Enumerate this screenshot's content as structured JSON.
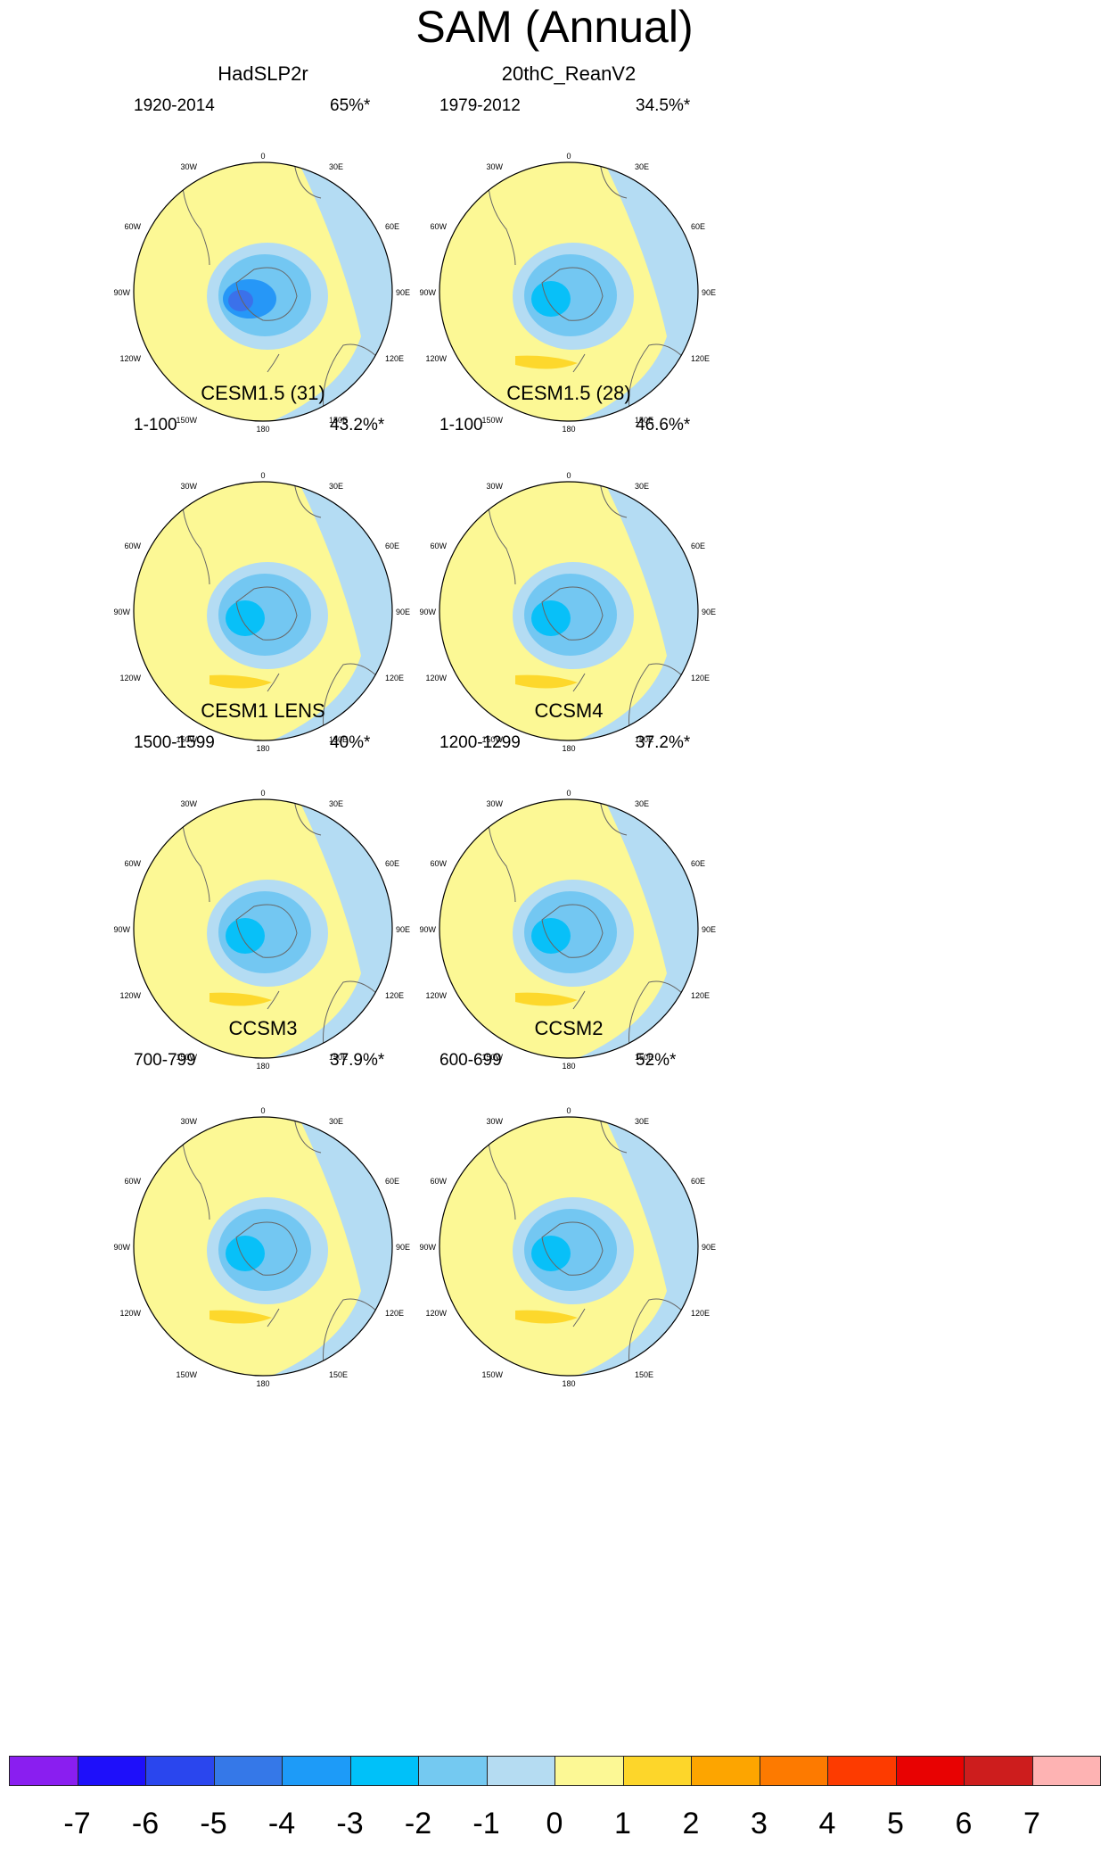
{
  "title": "SAM (Annual)",
  "colors": {
    "ocean_bg": "#fcf895",
    "neg1": "#b4dcf3",
    "neg2": "#73c7f2",
    "neg3": "#08c0f8",
    "neg4": "#2697f7",
    "neg5": "#3b71ea",
    "pos1": "#fdd82c",
    "coast": "#666666"
  },
  "map_labels": {
    "top": "0",
    "bottom": "180",
    "left": "90W",
    "right": "90E",
    "w30": "30W",
    "e30": "30E",
    "w60": "60W",
    "e60": "60E",
    "w120": "120W",
    "e120": "120E",
    "w150": "150W",
    "e150": "150E"
  },
  "panels": [
    {
      "name": "HadSLP2r",
      "period": "1920-2014",
      "variance": "65%*",
      "min_level": -5,
      "pos_blob": false
    },
    {
      "name": "20thC_ReanV2",
      "period": "1979-2012",
      "variance": "34.5%*",
      "min_level": -3,
      "pos_blob": true
    },
    {
      "name": "CESM1.5 (31)",
      "period": "1-100",
      "variance": "43.2%*",
      "min_level": -3,
      "pos_blob": true
    },
    {
      "name": "CESM1.5 (28)",
      "period": "1-100",
      "variance": "46.6%*",
      "min_level": -3,
      "pos_blob": true
    },
    {
      "name": "CESM1 LENS",
      "period": "1500-1599",
      "variance": "40%*",
      "min_level": -3,
      "pos_blob": true
    },
    {
      "name": "CCSM4",
      "period": "1200-1299",
      "variance": "37.2%*",
      "min_level": -3,
      "pos_blob": true
    },
    {
      "name": "CCSM3",
      "period": "700-799",
      "variance": "37.9%*",
      "min_level": -3,
      "pos_blob": true
    },
    {
      "name": "CCSM2",
      "period": "600-699",
      "variance": "52%*",
      "min_level": -3,
      "pos_blob": true
    }
  ],
  "colorbar": {
    "ticks": [
      "-7",
      "-6",
      "-5",
      "-4",
      "-3",
      "-2",
      "-1",
      "0",
      "1",
      "2",
      "3",
      "4",
      "5",
      "6",
      "7"
    ],
    "colors": [
      "#8a1ef0",
      "#1e0ffa",
      "#2a46ee",
      "#3578e8",
      "#1d9bf8",
      "#00c1f9",
      "#74c9f1",
      "#b5dcf2",
      "#fcf895",
      "#fdd62a",
      "#fda500",
      "#fd7a00",
      "#fd3b00",
      "#e80202",
      "#cd1d1d",
      "#feb3b3"
    ]
  }
}
